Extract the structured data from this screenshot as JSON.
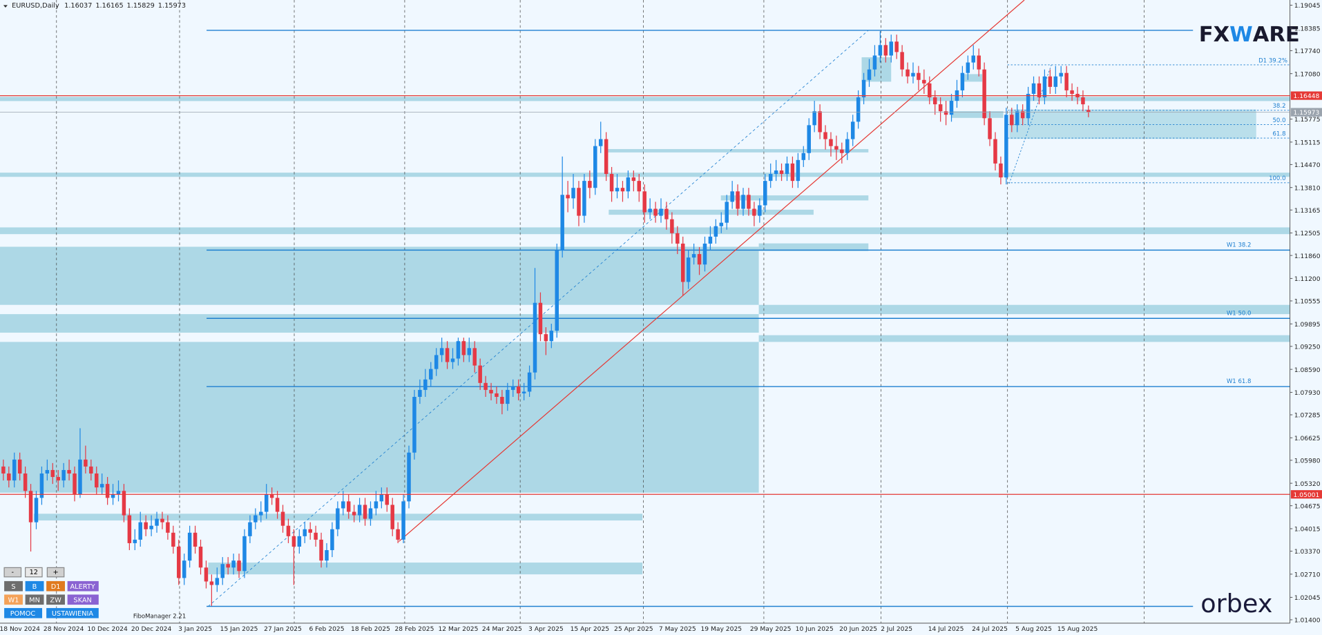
{
  "header": {
    "symbol": "EURUSD,Daily"
  },
  "chart_data": {
    "type": "candlestick",
    "categories": [
      null,
      null,
      null,
      "18 Nov 2024",
      null,
      null,
      null,
      null,
      null,
      null,
      null,
      "28 Nov 2024",
      null,
      null,
      null,
      null,
      null,
      null,
      null,
      "10 Dec 2024",
      null,
      null,
      null,
      null,
      null,
      null,
      null,
      "20 Dec 2024",
      null,
      null,
      null,
      null,
      null,
      null,
      null,
      "3 Jan 2025",
      null,
      null,
      null,
      null,
      null,
      null,
      null,
      "15 Jan 2025",
      null,
      null,
      null,
      null,
      null,
      null,
      null,
      "27 Jan 2025",
      null,
      null,
      null,
      null,
      null,
      null,
      null,
      "6 Feb 2025",
      null,
      null,
      null,
      null,
      null,
      null,
      null,
      "18 Feb 2025",
      null,
      null,
      null,
      null,
      null,
      null,
      null,
      "28 Feb 2025",
      null,
      null,
      null,
      null,
      null,
      null,
      null,
      "12 Mar 2025",
      null,
      null,
      null,
      null,
      null,
      null,
      null,
      "24 Mar 2025",
      null,
      null,
      null,
      null,
      null,
      null,
      null,
      "3 Apr 2025",
      null,
      null,
      null,
      null,
      null,
      null,
      null,
      "15 Apr 2025",
      null,
      null,
      null,
      null,
      null,
      null,
      null,
      "25 Apr 2025",
      null,
      null,
      null,
      null,
      null,
      null,
      null,
      "7 May 2025",
      null,
      null,
      null,
      null,
      null,
      null,
      null,
      "19 May 2025",
      null,
      null,
      null,
      null,
      null,
      null,
      null,
      null,
      "29 May 2025",
      null,
      null,
      null,
      null,
      null,
      null,
      null,
      "10 Jun 2025",
      null,
      null,
      null,
      null,
      null,
      null,
      null,
      "20 Jun 2025",
      null,
      null,
      null,
      null,
      null,
      null,
      "2 Jul 2025",
      null,
      null,
      null,
      null,
      null,
      null,
      null,
      null,
      "14 Jul 2025",
      null,
      null,
      null,
      null,
      null,
      null,
      null,
      "24 Jul 2025",
      null,
      null,
      null,
      null,
      null,
      null,
      null,
      "5 Aug 2025",
      null,
      null,
      null,
      null,
      null,
      null,
      null,
      "15 Aug 2025",
      null,
      null
    ],
    "ohlc": [
      [
        1.058,
        1.06,
        1.054,
        1.056
      ],
      [
        1.056,
        1.058,
        1.052,
        1.054
      ],
      [
        1.054,
        1.062,
        1.052,
        1.06
      ],
      [
        1.06,
        1.062,
        1.054,
        1.056
      ],
      [
        1.056,
        1.058,
        1.049,
        1.051
      ],
      [
        1.051,
        1.053,
        1.0336,
        1.042
      ],
      [
        1.042,
        1.051,
        1.04,
        1.049
      ],
      [
        1.049,
        1.058,
        1.047,
        1.056
      ],
      [
        1.056,
        1.06,
        1.054,
        1.057
      ],
      [
        1.057,
        1.059,
        1.053,
        1.055
      ],
      [
        1.055,
        1.057,
        1.051,
        1.054
      ],
      [
        1.054,
        1.059,
        1.052,
        1.057
      ],
      [
        1.057,
        1.06,
        1.054,
        1.056
      ],
      [
        1.056,
        1.058,
        1.048,
        1.05
      ],
      [
        1.05,
        1.069,
        1.049,
        1.06
      ],
      [
        1.06,
        1.064,
        1.056,
        1.058
      ],
      [
        1.058,
        1.06,
        1.054,
        1.056
      ],
      [
        1.056,
        1.058,
        1.05,
        1.052
      ],
      [
        1.052,
        1.056,
        1.05,
        1.053
      ],
      [
        1.053,
        1.055,
        1.047,
        1.049
      ],
      [
        1.049,
        1.053,
        1.047,
        1.05
      ],
      [
        1.05,
        1.054,
        1.048,
        1.051
      ],
      [
        1.051,
        1.053,
        1.042,
        1.044
      ],
      [
        1.044,
        1.046,
        1.034,
        1.036
      ],
      [
        1.036,
        1.04,
        1.034,
        1.037
      ],
      [
        1.037,
        1.045,
        1.035,
        1.042
      ],
      [
        1.042,
        1.044,
        1.038,
        1.04
      ],
      [
        1.04,
        1.044,
        1.038,
        1.041
      ],
      [
        1.041,
        1.045,
        1.039,
        1.043
      ],
      [
        1.043,
        1.045,
        1.04,
        1.042
      ],
      [
        1.042,
        1.044,
        1.037,
        1.039
      ],
      [
        1.039,
        1.041,
        1.033,
        1.035
      ],
      [
        1.035,
        1.037,
        1.024,
        1.026
      ],
      [
        1.026,
        1.033,
        1.024,
        1.031
      ],
      [
        1.031,
        1.041,
        1.029,
        1.039
      ],
      [
        1.039,
        1.041,
        1.033,
        1.035
      ],
      [
        1.035,
        1.037,
        1.027,
        1.029
      ],
      [
        1.029,
        1.031,
        1.023,
        1.025
      ],
      [
        1.025,
        1.027,
        1.018,
        1.024
      ],
      [
        1.024,
        1.029,
        1.022,
        1.026
      ],
      [
        1.026,
        1.032,
        1.024,
        1.03
      ],
      [
        1.03,
        1.032,
        1.027,
        1.029
      ],
      [
        1.029,
        1.033,
        1.027,
        1.031
      ],
      [
        1.031,
        1.033,
        1.026,
        1.028
      ],
      [
        1.028,
        1.04,
        1.026,
        1.038
      ],
      [
        1.038,
        1.044,
        1.036,
        1.042
      ],
      [
        1.042,
        1.046,
        1.04,
        1.044
      ],
      [
        1.044,
        1.048,
        1.042,
        1.045
      ],
      [
        1.045,
        1.053,
        1.043,
        1.05
      ],
      [
        1.05,
        1.052,
        1.047,
        1.049
      ],
      [
        1.049,
        1.051,
        1.043,
        1.045
      ],
      [
        1.045,
        1.047,
        1.039,
        1.041
      ],
      [
        1.041,
        1.043,
        1.036,
        1.038
      ],
      [
        1.038,
        1.04,
        1.024,
        1.035
      ],
      [
        1.035,
        1.04,
        1.033,
        1.038
      ],
      [
        1.038,
        1.042,
        1.036,
        1.04
      ],
      [
        1.04,
        1.042,
        1.037,
        1.039
      ],
      [
        1.039,
        1.041,
        1.035,
        1.037
      ],
      [
        1.037,
        1.039,
        1.029,
        1.031
      ],
      [
        1.031,
        1.036,
        1.029,
        1.034
      ],
      [
        1.034,
        1.042,
        1.032,
        1.04
      ],
      [
        1.04,
        1.048,
        1.038,
        1.046
      ],
      [
        1.046,
        1.051,
        1.044,
        1.048
      ],
      [
        1.048,
        1.05,
        1.043,
        1.045
      ],
      [
        1.045,
        1.047,
        1.042,
        1.044
      ],
      [
        1.044,
        1.049,
        1.042,
        1.047
      ],
      [
        1.047,
        1.049,
        1.041,
        1.043
      ],
      [
        1.043,
        1.048,
        1.041,
        1.046
      ],
      [
        1.046,
        1.051,
        1.044,
        1.048
      ],
      [
        1.048,
        1.052,
        1.046,
        1.05
      ],
      [
        1.05,
        1.052,
        1.045,
        1.047
      ],
      [
        1.047,
        1.049,
        1.038,
        1.04
      ],
      [
        1.04,
        1.042,
        1.036,
        1.037
      ],
      [
        1.037,
        1.05,
        1.036,
        1.048
      ],
      [
        1.048,
        1.064,
        1.046,
        1.062
      ],
      [
        1.062,
        1.08,
        1.06,
        1.078
      ],
      [
        1.078,
        1.083,
        1.076,
        1.08
      ],
      [
        1.08,
        1.086,
        1.078,
        1.083
      ],
      [
        1.083,
        1.088,
        1.081,
        1.086
      ],
      [
        1.086,
        1.092,
        1.084,
        1.09
      ],
      [
        1.09,
        1.095,
        1.088,
        1.092
      ],
      [
        1.092,
        1.094,
        1.086,
        1.088
      ],
      [
        1.088,
        1.092,
        1.086,
        1.089
      ],
      [
        1.089,
        1.095,
        1.087,
        1.094
      ],
      [
        1.094,
        1.095,
        1.088,
        1.09
      ],
      [
        1.09,
        1.095,
        1.088,
        1.092
      ],
      [
        1.092,
        1.094,
        1.085,
        1.087
      ],
      [
        1.087,
        1.089,
        1.08,
        1.082
      ],
      [
        1.082,
        1.084,
        1.078,
        1.08
      ],
      [
        1.08,
        1.082,
        1.077,
        1.079
      ],
      [
        1.079,
        1.081,
        1.076,
        1.078
      ],
      [
        1.078,
        1.08,
        1.073,
        1.076
      ],
      [
        1.076,
        1.082,
        1.074,
        1.08
      ],
      [
        1.08,
        1.083,
        1.078,
        1.081
      ],
      [
        1.081,
        1.083,
        1.077,
        1.079
      ],
      [
        1.079,
        1.082,
        1.077,
        1.0795
      ],
      [
        1.0795,
        1.087,
        1.078,
        1.085
      ],
      [
        1.085,
        1.115,
        1.083,
        1.105
      ],
      [
        1.105,
        1.108,
        1.094,
        1.096
      ],
      [
        1.096,
        1.098,
        1.09,
        1.094
      ],
      [
        1.094,
        1.099,
        1.092,
        1.097
      ],
      [
        1.097,
        1.122,
        1.095,
        1.12
      ],
      [
        1.12,
        1.147,
        1.118,
        1.136
      ],
      [
        1.136,
        1.14,
        1.131,
        1.135
      ],
      [
        1.135,
        1.142,
        1.132,
        1.138
      ],
      [
        1.138,
        1.14,
        1.127,
        1.13
      ],
      [
        1.13,
        1.142,
        1.128,
        1.14
      ],
      [
        1.14,
        1.143,
        1.135,
        1.138
      ],
      [
        1.138,
        1.152,
        1.136,
        1.15
      ],
      [
        1.15,
        1.157,
        1.148,
        1.152
      ],
      [
        1.152,
        1.154,
        1.14,
        1.142
      ],
      [
        1.142,
        1.144,
        1.134,
        1.137
      ],
      [
        1.137,
        1.142,
        1.135,
        1.138
      ],
      [
        1.138,
        1.14,
        1.134,
        1.137
      ],
      [
        1.137,
        1.143,
        1.135,
        1.141
      ],
      [
        1.141,
        1.143,
        1.137,
        1.14
      ],
      [
        1.14,
        1.142,
        1.134,
        1.137
      ],
      [
        1.137,
        1.139,
        1.128,
        1.131
      ],
      [
        1.131,
        1.135,
        1.129,
        1.132
      ],
      [
        1.132,
        1.134,
        1.128,
        1.13
      ],
      [
        1.13,
        1.135,
        1.128,
        1.132
      ],
      [
        1.132,
        1.134,
        1.126,
        1.129
      ],
      [
        1.129,
        1.131,
        1.122,
        1.125
      ],
      [
        1.125,
        1.127,
        1.119,
        1.122
      ],
      [
        1.122,
        1.124,
        1.107,
        1.111
      ],
      [
        1.111,
        1.12,
        1.109,
        1.118
      ],
      [
        1.118,
        1.122,
        1.116,
        1.119
      ],
      [
        1.119,
        1.121,
        1.113,
        1.116
      ],
      [
        1.116,
        1.124,
        1.114,
        1.122
      ],
      [
        1.122,
        1.127,
        1.12,
        1.124
      ],
      [
        1.124,
        1.129,
        1.122,
        1.127
      ],
      [
        1.127,
        1.131,
        1.125,
        1.128
      ],
      [
        1.128,
        1.136,
        1.126,
        1.134
      ],
      [
        1.134,
        1.14,
        1.132,
        1.137
      ],
      [
        1.137,
        1.139,
        1.13,
        1.132
      ],
      [
        1.132,
        1.138,
        1.13,
        1.136
      ],
      [
        1.136,
        1.138,
        1.13,
        1.132
      ],
      [
        1.132,
        1.134,
        1.127,
        1.13
      ],
      [
        1.13,
        1.135,
        1.128,
        1.133
      ],
      [
        1.133,
        1.142,
        1.131,
        1.14
      ],
      [
        1.14,
        1.145,
        1.138,
        1.142
      ],
      [
        1.142,
        1.146,
        1.14,
        1.143
      ],
      [
        1.143,
        1.145,
        1.14,
        1.142
      ],
      [
        1.142,
        1.147,
        1.14,
        1.145
      ],
      [
        1.145,
        1.147,
        1.138,
        1.14
      ],
      [
        1.14,
        1.148,
        1.138,
        1.146
      ],
      [
        1.146,
        1.15,
        1.144,
        1.148
      ],
      [
        1.148,
        1.158,
        1.146,
        1.156
      ],
      [
        1.156,
        1.163,
        1.154,
        1.16
      ],
      [
        1.16,
        1.162,
        1.152,
        1.154
      ],
      [
        1.154,
        1.156,
        1.149,
        1.152
      ],
      [
        1.152,
        1.154,
        1.147,
        1.15
      ],
      [
        1.15,
        1.153,
        1.146,
        1.149
      ],
      [
        1.149,
        1.151,
        1.145,
        1.148
      ],
      [
        1.148,
        1.154,
        1.146,
        1.152
      ],
      [
        1.152,
        1.159,
        1.15,
        1.157
      ],
      [
        1.157,
        1.166,
        1.155,
        1.164
      ],
      [
        1.164,
        1.171,
        1.162,
        1.169
      ],
      [
        1.169,
        1.175,
        1.167,
        1.172
      ],
      [
        1.172,
        1.179,
        1.17,
        1.176
      ],
      [
        1.176,
        1.183,
        1.174,
        1.179
      ],
      [
        1.179,
        1.181,
        1.174,
        1.176
      ],
      [
        1.176,
        1.182,
        1.174,
        1.18
      ],
      [
        1.18,
        1.182,
        1.175,
        1.177
      ],
      [
        1.177,
        1.179,
        1.17,
        1.172
      ],
      [
        1.172,
        1.174,
        1.168,
        1.17
      ],
      [
        1.17,
        1.174,
        1.168,
        1.171
      ],
      [
        1.171,
        1.173,
        1.166,
        1.169
      ],
      [
        1.169,
        1.172,
        1.165,
        1.168
      ],
      [
        1.168,
        1.17,
        1.162,
        1.164
      ],
      [
        1.164,
        1.166,
        1.159,
        1.162
      ],
      [
        1.162,
        1.164,
        1.157,
        1.16
      ],
      [
        1.16,
        1.163,
        1.156,
        1.159
      ],
      [
        1.159,
        1.165,
        1.157,
        1.163
      ],
      [
        1.163,
        1.169,
        1.161,
        1.166
      ],
      [
        1.166,
        1.173,
        1.164,
        1.171
      ],
      [
        1.171,
        1.176,
        1.169,
        1.174
      ],
      [
        1.174,
        1.179,
        1.172,
        1.176
      ],
      [
        1.176,
        1.178,
        1.17,
        1.172
      ],
      [
        1.172,
        1.174,
        1.156,
        1.158
      ],
      [
        1.158,
        1.16,
        1.15,
        1.152
      ],
      [
        1.152,
        1.154,
        1.143,
        1.145
      ],
      [
        1.145,
        1.147,
        1.139,
        1.141
      ],
      [
        1.141,
        1.161,
        1.139,
        1.159
      ],
      [
        1.159,
        1.161,
        1.154,
        1.156
      ],
      [
        1.156,
        1.162,
        1.154,
        1.16
      ],
      [
        1.16,
        1.162,
        1.156,
        1.158
      ],
      [
        1.158,
        1.167,
        1.156,
        1.165
      ],
      [
        1.165,
        1.17,
        1.163,
        1.168
      ],
      [
        1.168,
        1.17,
        1.162,
        1.164
      ],
      [
        1.164,
        1.172,
        1.162,
        1.17
      ],
      [
        1.17,
        1.172,
        1.165,
        1.167
      ],
      [
        1.167,
        1.173,
        1.165,
        1.17
      ],
      [
        1.17,
        1.173,
        1.168,
        1.171
      ],
      [
        1.171,
        1.173,
        1.164,
        1.166
      ],
      [
        1.166,
        1.168,
        1.163,
        1.165
      ],
      [
        1.165,
        1.167,
        1.162,
        1.164
      ],
      [
        1.164,
        1.166,
        1.16,
        1.162
      ],
      [
        1.16037,
        1.16165,
        1.15829,
        1.15973
      ]
    ],
    "ylim": [
      1.0106,
      1.1917
    ],
    "yticks": [
      1.19045,
      1.18385,
      {
        "value": 1.1774,
        "label": "1.17740"
      },
      {
        "value": 1.1708,
        "label": "1.17080"
      },
      1.15775,
      1.15115,
      {
        "value": 1.1447,
        "label": "1.14470"
      },
      {
        "value": 1.1381,
        "label": "1.13810"
      },
      1.13165,
      1.12505,
      {
        "value": 1.1186,
        "label": "1.11860"
      },
      {
        "value": 1.112,
        "label": "1.11200"
      },
      1.10555,
      1.09895,
      {
        "value": 1.0925,
        "label": "1.09250"
      },
      {
        "value": 1.0859,
        "label": "1.08590"
      },
      {
        "value": 1.0793,
        "label": "1.07930"
      },
      1.07285,
      1.06625,
      {
        "value": 1.0598,
        "label": "1.05980"
      },
      {
        "value": 1.0532,
        "label": "1.05320"
      },
      1.04675,
      1.04015,
      {
        "value": 1.0337,
        "label": "1.03370"
      },
      {
        "value": 1.0271,
        "label": "1.02710"
      },
      1.02045,
      {
        "value": 1.014,
        "label": "1.01400"
      }
    ],
    "up_color": "#1e88e5",
    "down_color": "#e53945",
    "last_price_color": "#9aa3ad",
    "hlines": [
      {
        "value": 1.16448,
        "color": "#e53935"
      },
      {
        "value": 1.05001,
        "color": "#e53935"
      }
    ]
  },
  "ui": {
    "fib": {
      "d1": "D1 39.2%",
      "l382": "38.2",
      "l500": "50.0",
      "l618": "61.8",
      "l1000": "100.0",
      "w382": "W1 38.2",
      "w500": "W1 50.0",
      "w618": "W1 61.8"
    },
    "indicator": "FiboManager 2.21",
    "logo": [
      "FX",
      "W",
      "ARE"
    ],
    "brand": "orbex",
    "buttons": [
      "-",
      "12",
      "+",
      "S",
      "B",
      "D1",
      "ALERTY",
      "W1",
      "MN",
      "ZW",
      "SKAN",
      "POMOC",
      "USTAWIENIA"
    ]
  }
}
